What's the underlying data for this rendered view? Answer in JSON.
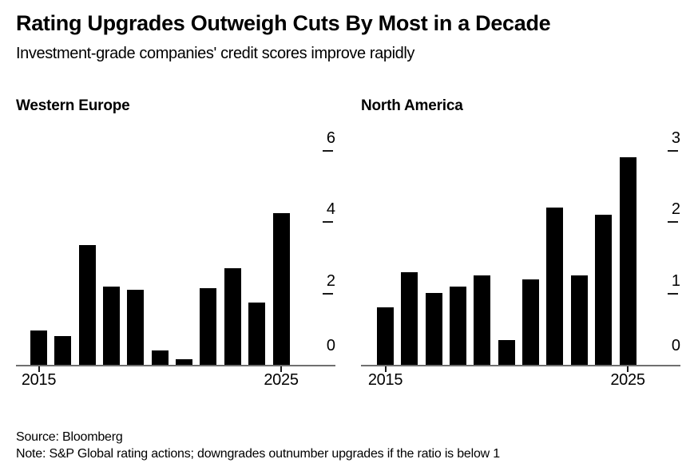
{
  "header": {
    "title": "Rating Upgrades Outweigh Cuts By Most in a Decade",
    "subtitle": "Investment-grade companies' credit scores improve rapidly"
  },
  "footer": {
    "source": "Source: Bloomberg",
    "note": "Note: S&P Global rating actions; downgrades outnumber upgrades if the ratio is below 1"
  },
  "colors": {
    "bar": "#000000",
    "axis_line": "#6f6f6f",
    "text": "#000000",
    "background": "#ffffff"
  },
  "chart_data": [
    {
      "type": "bar",
      "title": "Western Europe",
      "ylabel": "",
      "xlabel": "",
      "legend": "none",
      "tick_side": "right",
      "x": [
        2015,
        2016,
        2017,
        2018,
        2019,
        2020,
        2021,
        2022,
        2023,
        2024,
        2025
      ],
      "values": [
        0.95,
        0.8,
        3.35,
        2.2,
        2.1,
        0.4,
        0.15,
        2.15,
        2.7,
        1.75,
        4.25
      ],
      "ylim": [
        0,
        6.86
      ],
      "yticks": [
        6,
        4,
        2,
        0
      ],
      "xticks": [
        {
          "label": "2015",
          "index": 0
        },
        {
          "label": "2025",
          "index": 10
        }
      ]
    },
    {
      "type": "bar",
      "title": "North America",
      "ylabel": "",
      "xlabel": "",
      "legend": "none",
      "tick_side": "right",
      "x": [
        2015,
        2016,
        2017,
        2018,
        2019,
        2020,
        2021,
        2022,
        2023,
        2024,
        2025
      ],
      "values": [
        0.8,
        1.3,
        1.0,
        1.1,
        1.25,
        0.35,
        1.2,
        2.2,
        1.25,
        2.1,
        2.9
      ],
      "ylim": [
        0,
        3.43
      ],
      "yticks": [
        3,
        2,
        1,
        0
      ],
      "xticks": [
        {
          "label": "2015",
          "index": 0
        },
        {
          "label": "2025",
          "index": 10
        }
      ]
    }
  ]
}
